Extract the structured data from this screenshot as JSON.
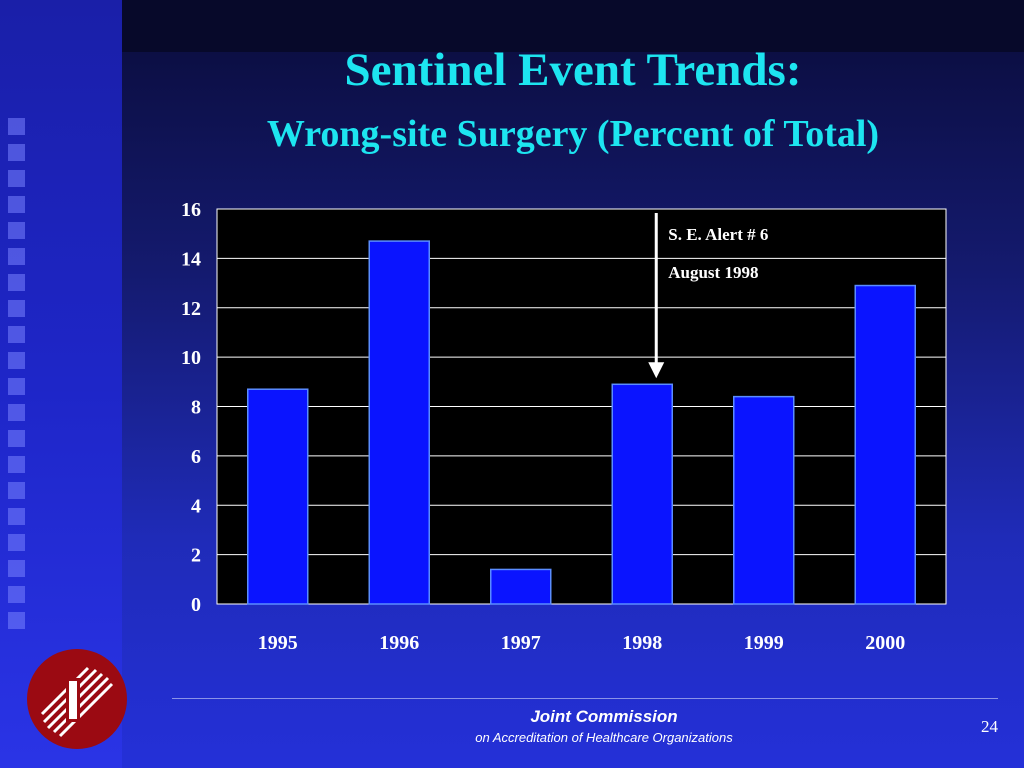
{
  "slide": {
    "title": "Sentinel Event Trends:",
    "subtitle": "Wrong-site Surgery (Percent of Total)",
    "footer_org": "Joint Commission",
    "footer_sub": "on Accreditation of Healthcare Organizations",
    "page_number": "24",
    "colors": {
      "background": "#1f2bb8",
      "title": "#1de5f0",
      "plot_background": "#000000",
      "bar": "#0a14ff",
      "logo": "#9b0a12"
    },
    "logo_icon": "joint-commission-logo-icon"
  },
  "chart_data": {
    "type": "bar",
    "categories": [
      "1995",
      "1996",
      "1997",
      "1998",
      "1999",
      "2000"
    ],
    "values": [
      8.7,
      14.7,
      1.4,
      8.9,
      8.4,
      12.9
    ],
    "ylim": [
      0,
      16
    ],
    "yticks": [
      "0",
      "2",
      "4",
      "6",
      "8",
      "10",
      "12",
      "14",
      "16"
    ],
    "grid": true,
    "annotation": {
      "line1": "S. E. Alert  # 6",
      "line2": "August 1998",
      "target_category": "1998"
    }
  }
}
